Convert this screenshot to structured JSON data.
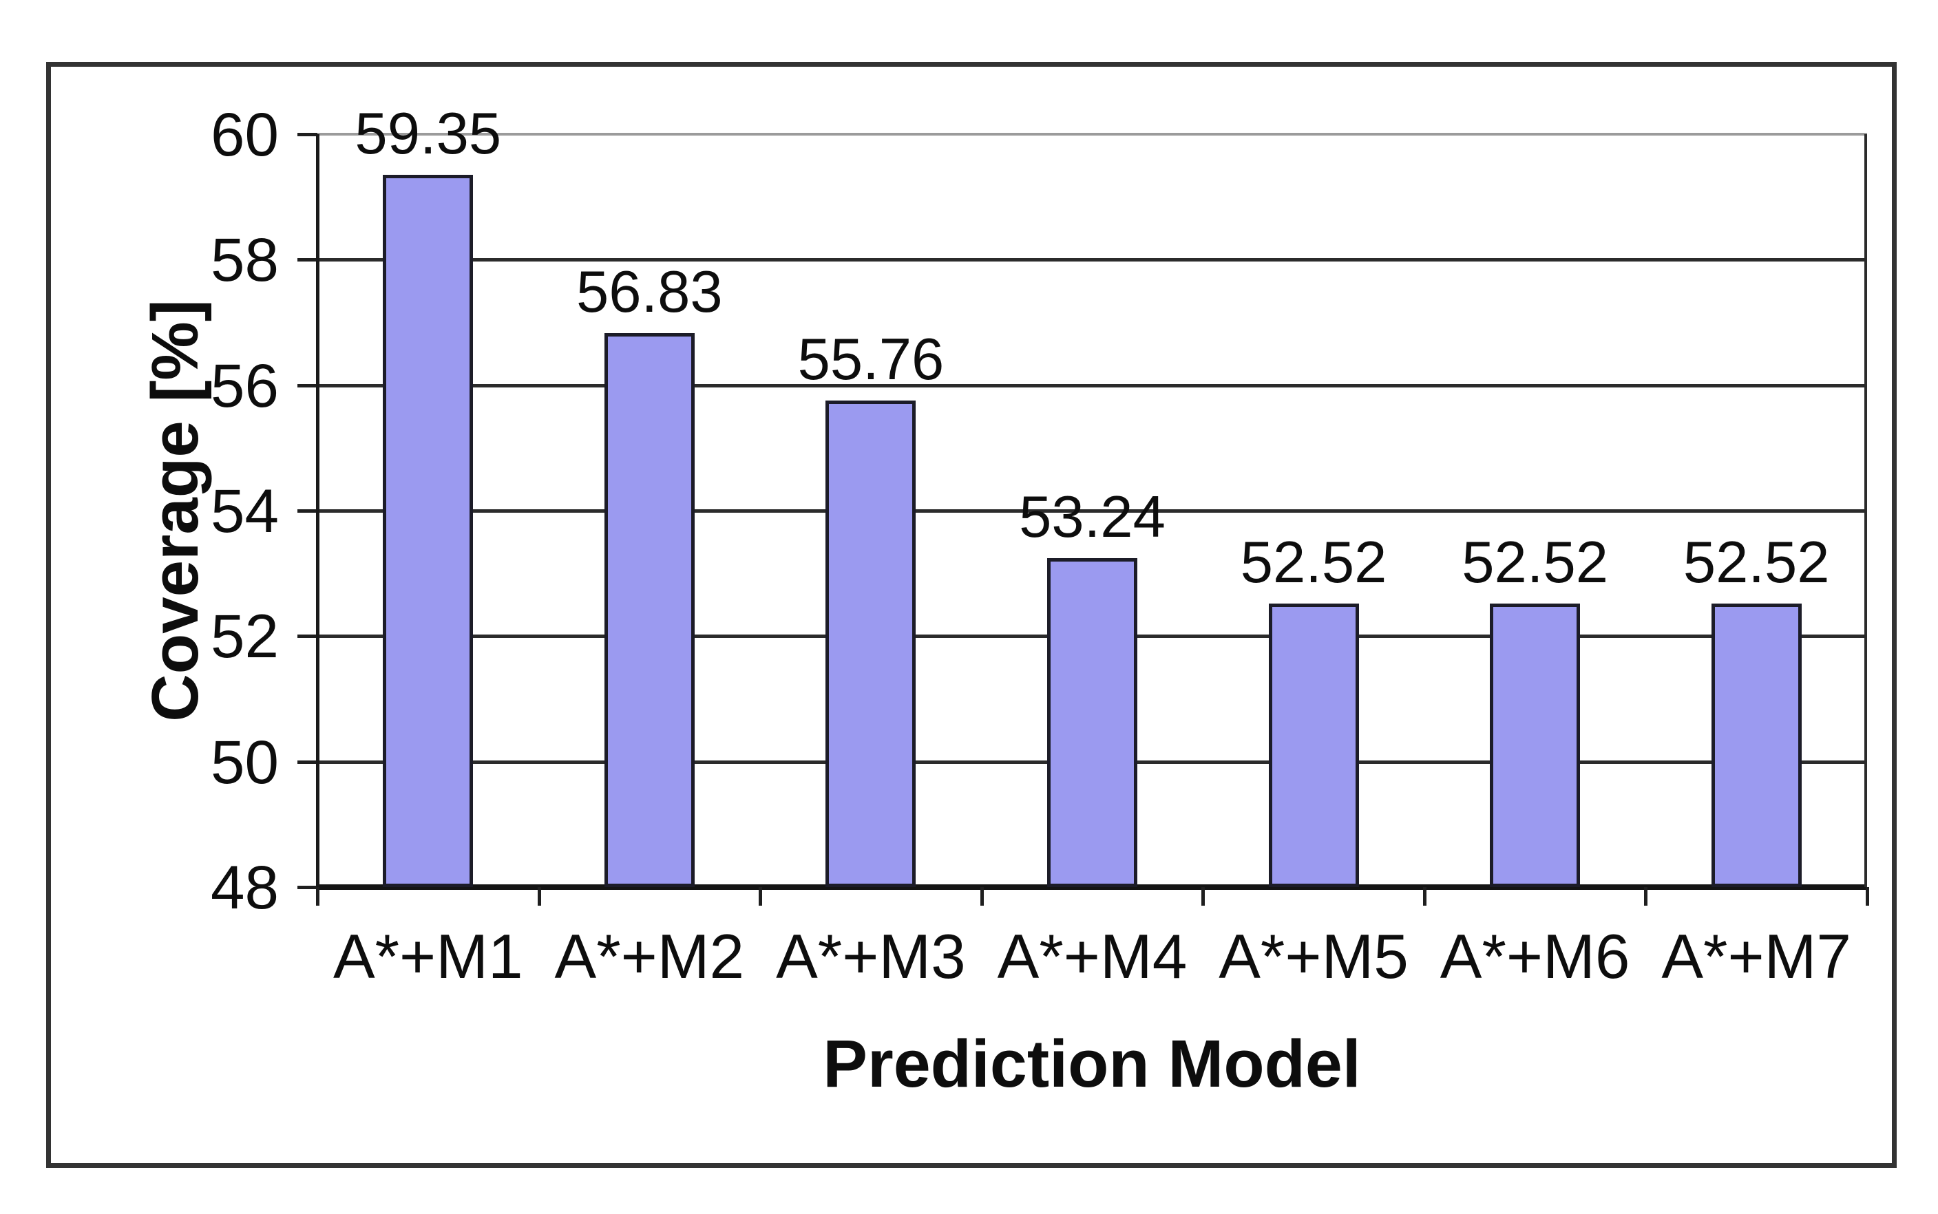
{
  "chart_data": {
    "type": "bar",
    "categories": [
      "A*+M1",
      "A*+M2",
      "A*+M3",
      "A*+M4",
      "A*+M5",
      "A*+M6",
      "A*+M7"
    ],
    "values": [
      59.35,
      56.83,
      55.76,
      53.24,
      52.52,
      52.52,
      52.52
    ],
    "value_labels": [
      "59.35",
      "56.83",
      "55.76",
      "53.24",
      "52.52",
      "52.52",
      "52.52"
    ],
    "title": "",
    "xlabel": "Prediction Model",
    "ylabel": "Coverage [%]",
    "ylim": [
      48,
      60
    ],
    "yticks": [
      48,
      50,
      52,
      54,
      56,
      58,
      60
    ],
    "ytick_labels": [
      "48",
      "50",
      "52",
      "54",
      "56",
      "58",
      "60"
    ],
    "grid": "horizontal",
    "legend_position": "none",
    "colors": {
      "bar_fill": "#9B9AF0",
      "bar_border": "#1C1C28",
      "gridline": "#2B2B2B",
      "top_gridline": "#9B9B9B",
      "axis": "#1A1A1A",
      "frame_border": "#333333",
      "text": "#0D0D0D",
      "background": "#FFFFFF"
    }
  }
}
